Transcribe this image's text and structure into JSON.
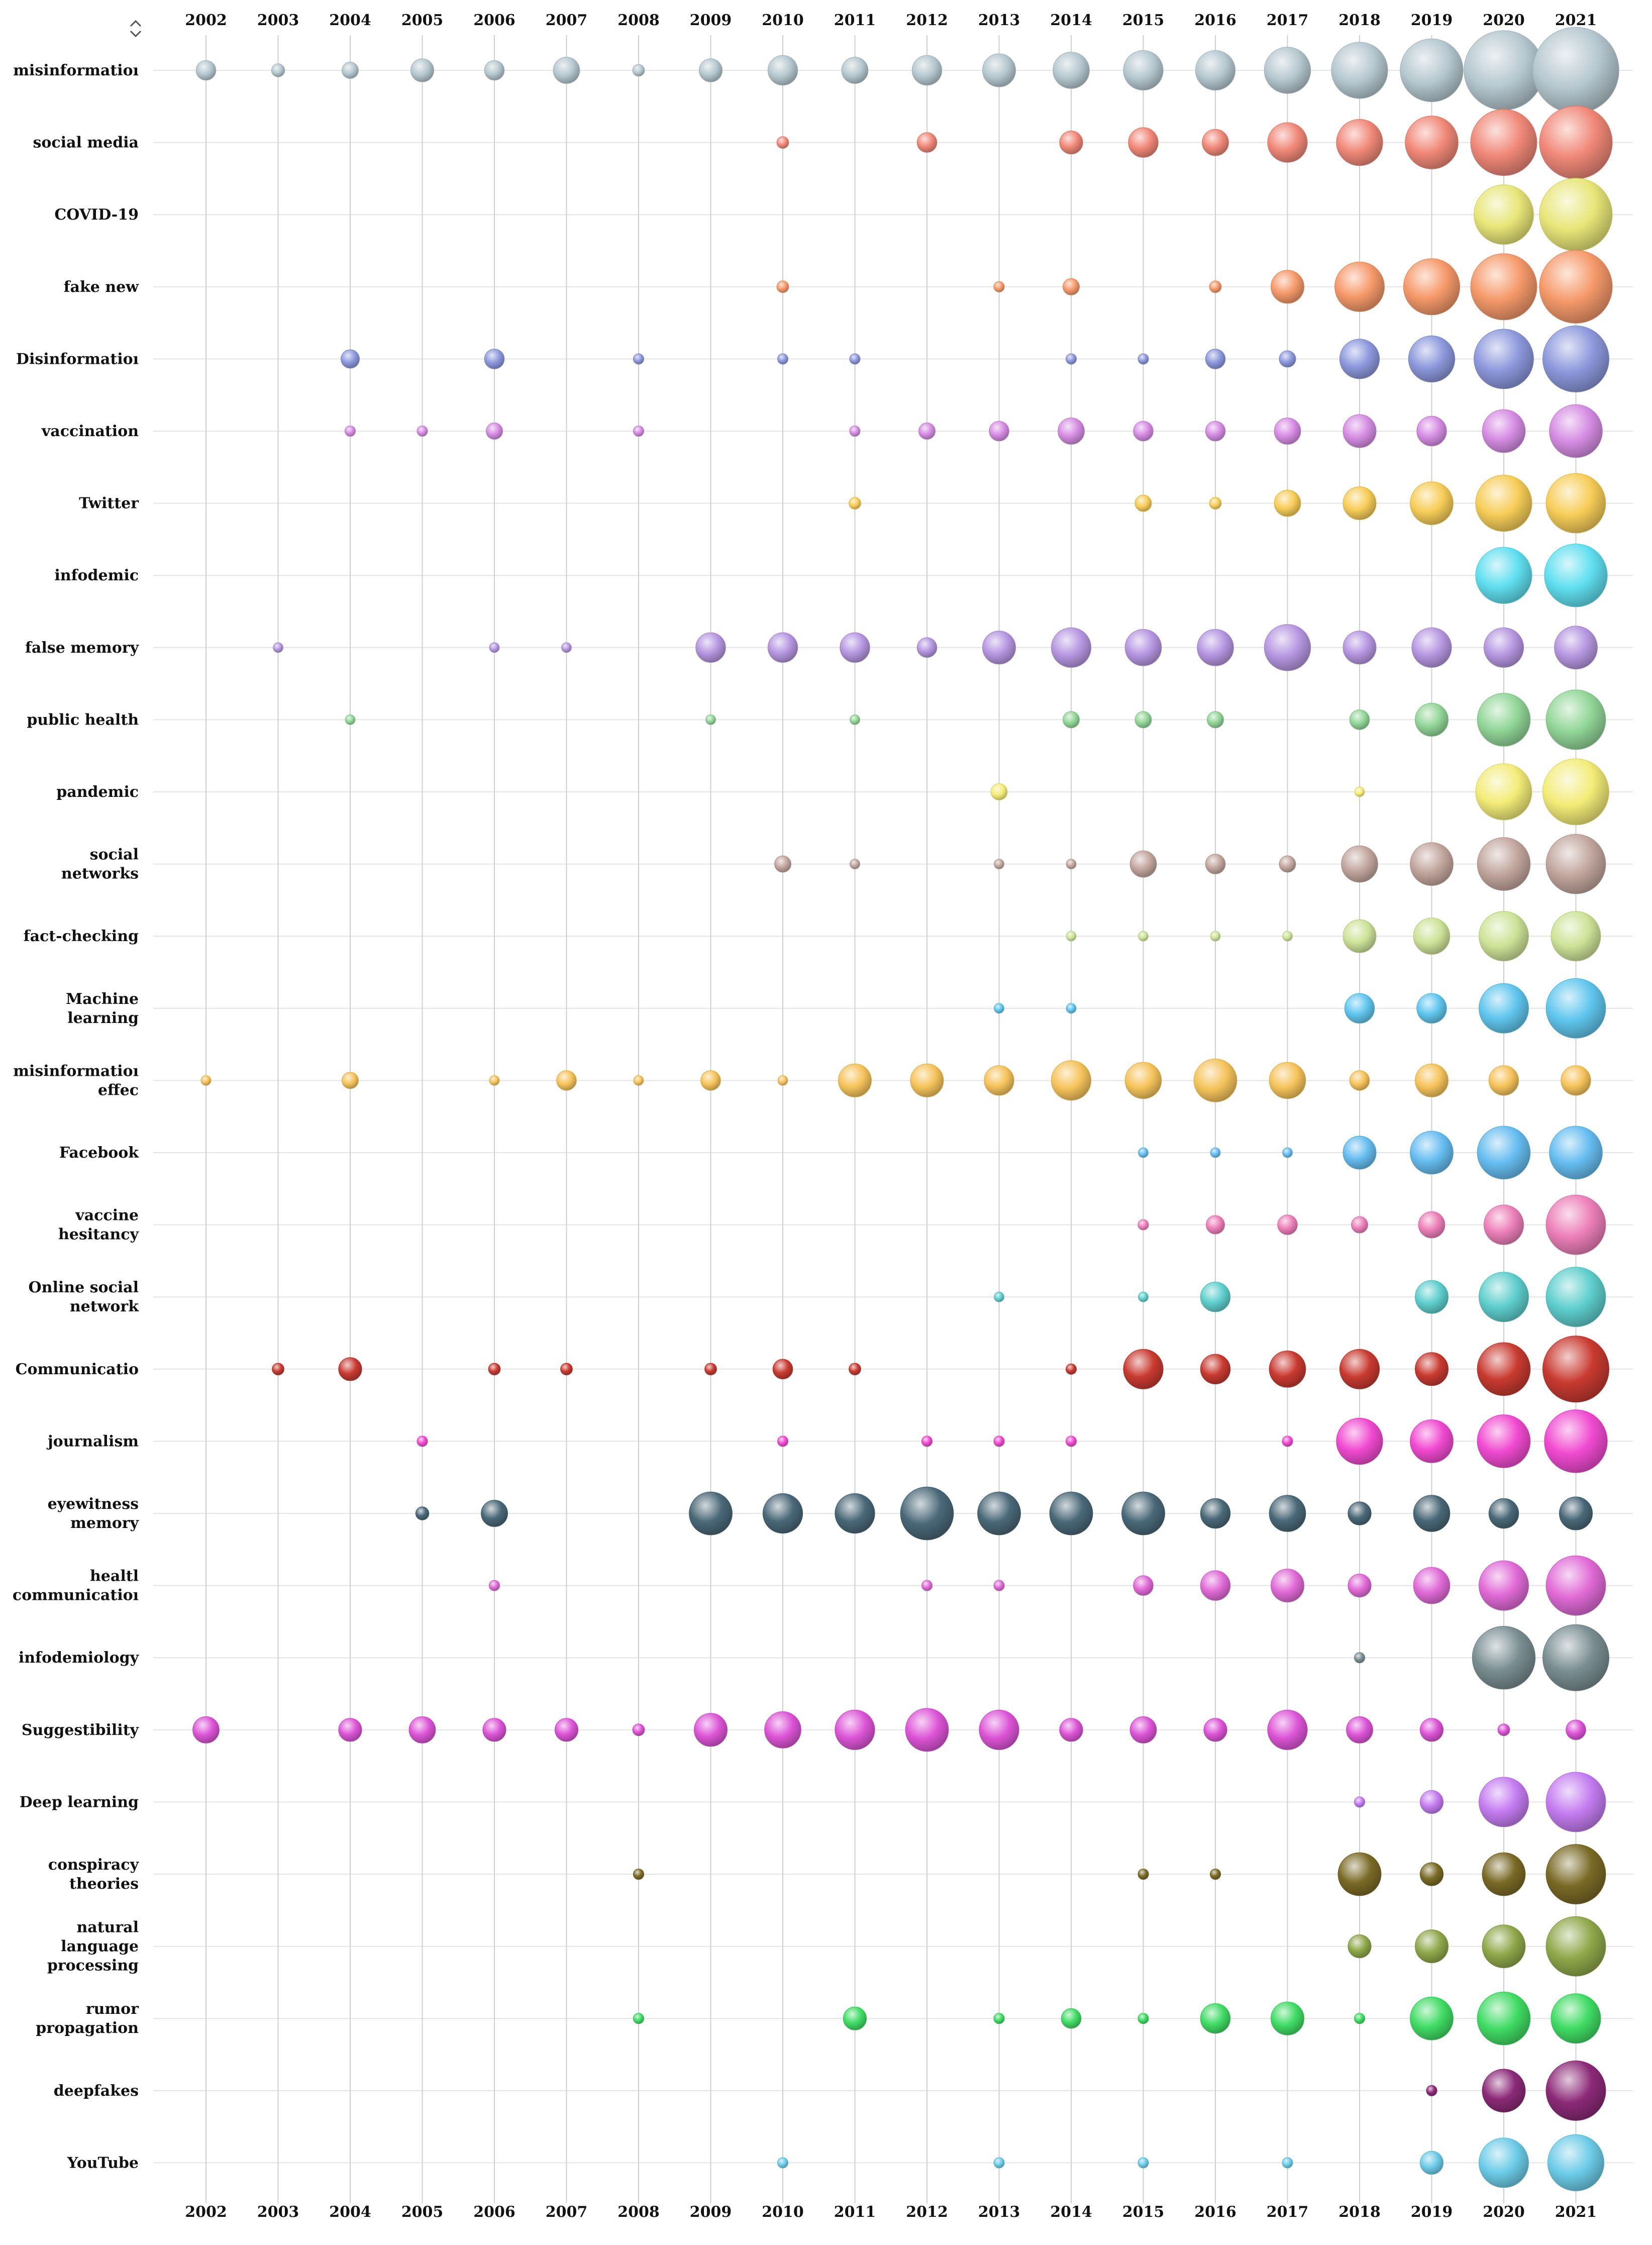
{
  "chart_data": {
    "type": "scatter",
    "title": "",
    "xlabel": "",
    "ylabel": "",
    "grid": true,
    "legend": "none",
    "x": [
      "2002",
      "2003",
      "2004",
      "2005",
      "2006",
      "2007",
      "2008",
      "2009",
      "2010",
      "2011",
      "2012",
      "2013",
      "2014",
      "2015",
      "2016",
      "2017",
      "2018",
      "2019",
      "2020",
      "2021"
    ],
    "keywords": [
      {
        "label": "misinformatioı",
        "color": "#b6c8d0",
        "sizes": [
          3,
          2,
          2.5,
          3.5,
          3,
          4,
          1.8,
          3.5,
          4.5,
          4,
          4.5,
          5,
          5.5,
          6,
          6,
          7,
          8.5,
          9.5,
          12,
          13
        ]
      },
      {
        "label": "social media",
        "color": "#f08878",
        "sizes": [
          0,
          0,
          0,
          0,
          0,
          0,
          0,
          0,
          1.8,
          0,
          3,
          0,
          3.5,
          4.5,
          4,
          6,
          7,
          8,
          10,
          11
        ]
      },
      {
        "label": "COVID-19",
        "color": "#e8e678",
        "sizes": [
          0,
          0,
          0,
          0,
          0,
          0,
          0,
          0,
          0,
          0,
          0,
          0,
          0,
          0,
          0,
          0,
          0,
          0,
          9,
          11
        ]
      },
      {
        "label": "fake new",
        "color": "#f5996a",
        "sizes": [
          0,
          0,
          0,
          0,
          0,
          0,
          0,
          0,
          1.8,
          0,
          0,
          1.6,
          2.5,
          0,
          1.8,
          5,
          7.5,
          8.5,
          10,
          11
        ]
      },
      {
        "label": "Disinformatioı",
        "color": "#8c98dc",
        "sizes": [
          0,
          0,
          2.8,
          0,
          3,
          0,
          1.6,
          0,
          1.6,
          1.6,
          0,
          0,
          1.6,
          1.6,
          3,
          2.5,
          6,
          7,
          9,
          10
        ]
      },
      {
        "label": "vaccination",
        "color": "#d58ce2",
        "sizes": [
          0,
          0,
          1.6,
          1.6,
          2.5,
          0,
          1.6,
          0,
          0,
          1.6,
          2.5,
          3,
          4,
          3,
          3,
          4,
          5,
          4.5,
          6.5,
          8
        ]
      },
      {
        "label": "Twitter",
        "color": "#f7cd58",
        "sizes": [
          0,
          0,
          0,
          0,
          0,
          0,
          0,
          0,
          0,
          1.8,
          0,
          0,
          0,
          2.5,
          1.8,
          4,
          5,
          6.5,
          8.5,
          9
        ]
      },
      {
        "label": "infodemic",
        "color": "#60dff0",
        "sizes": [
          0,
          0,
          0,
          0,
          0,
          0,
          0,
          0,
          0,
          0,
          0,
          0,
          0,
          0,
          0,
          0,
          0,
          0,
          8.5,
          9.5
        ]
      },
      {
        "label": "false memory",
        "color": "#b596e0",
        "sizes": [
          0,
          1.5,
          0,
          0,
          1.5,
          1.5,
          0,
          4.5,
          4.5,
          4.5,
          3,
          5,
          6,
          5.5,
          5.5,
          7,
          5,
          6,
          6,
          6.5
        ]
      },
      {
        "label": "public health",
        "color": "#92d698",
        "sizes": [
          0,
          0,
          1.5,
          0,
          0,
          0,
          0,
          1.5,
          0,
          1.5,
          0,
          0,
          2.5,
          2.5,
          2.5,
          0,
          3,
          5,
          8,
          9
        ]
      },
      {
        "label": "pandemic",
        "color": "#f3ec78",
        "sizes": [
          0,
          0,
          0,
          0,
          0,
          0,
          0,
          0,
          0,
          0,
          0,
          2.5,
          0,
          0,
          0,
          0,
          1.5,
          0,
          8.5,
          10
        ]
      },
      {
        "label": "social\nnetworks",
        "color": "#c2a69e",
        "sizes": [
          0,
          0,
          0,
          0,
          0,
          0,
          0,
          0,
          2.5,
          1.5,
          0,
          1.5,
          1.5,
          4,
          3,
          2.5,
          5.5,
          6.5,
          8,
          9
        ]
      },
      {
        "label": "fact-checking",
        "color": "#cde397",
        "sizes": [
          0,
          0,
          0,
          0,
          0,
          0,
          0,
          0,
          0,
          0,
          0,
          0,
          1.5,
          1.5,
          1.5,
          1.5,
          5,
          5.5,
          7.5,
          7.5
        ]
      },
      {
        "label": "Machine\nlearning",
        "color": "#60c6ee",
        "sizes": [
          0,
          0,
          0,
          0,
          0,
          0,
          0,
          0,
          0,
          0,
          0,
          1.5,
          1.5,
          0,
          0,
          0,
          4.5,
          4.5,
          7.5,
          9
        ]
      },
      {
        "label": "misinformatioı\neffec",
        "color": "#f5c35a",
        "sizes": [
          1.5,
          0,
          2.5,
          0,
          1.5,
          3,
          1.5,
          3,
          1.5,
          5,
          5,
          4.5,
          6,
          5.5,
          6.5,
          5.5,
          3,
          5,
          4.5,
          4.5
        ]
      },
      {
        "label": "Facebook",
        "color": "#66bdf0",
        "sizes": [
          0,
          0,
          0,
          0,
          0,
          0,
          0,
          0,
          0,
          0,
          0,
          0,
          0,
          1.5,
          1.5,
          1.5,
          5,
          6.5,
          8,
          8
        ]
      },
      {
        "label": "vaccine\nhesitancy",
        "color": "#ec7fb8",
        "sizes": [
          0,
          0,
          0,
          0,
          0,
          0,
          0,
          0,
          0,
          0,
          0,
          0,
          0,
          1.6,
          2.8,
          3,
          2.5,
          4,
          6,
          9
        ]
      },
      {
        "label": "Online social\nnetwork",
        "color": "#5ecfcd",
        "sizes": [
          0,
          0,
          0,
          0,
          0,
          0,
          0,
          0,
          0,
          0,
          0,
          1.5,
          0,
          1.5,
          4.5,
          0,
          0,
          5,
          7.5,
          9
        ]
      },
      {
        "label": "Communicatio",
        "color": "#c83a30",
        "sizes": [
          0,
          1.8,
          3.5,
          0,
          1.8,
          1.8,
          0,
          1.8,
          3,
          1.8,
          0,
          0,
          1.6,
          6,
          4.5,
          5.5,
          6,
          5,
          8,
          10
        ]
      },
      {
        "label": "journalism",
        "color": "#f04ad0",
        "sizes": [
          0,
          0,
          0,
          1.6,
          0,
          0,
          0,
          0,
          1.6,
          0,
          1.6,
          1.6,
          1.6,
          0,
          0,
          1.6,
          7,
          6.5,
          8,
          9.5
        ]
      },
      {
        "label": "eyewitness\nmemory",
        "color": "#4a6878",
        "sizes": [
          0,
          0,
          0,
          2,
          4,
          0,
          0,
          6.5,
          6,
          6,
          8,
          6.5,
          6.5,
          6.5,
          4.5,
          5.5,
          3.5,
          5.5,
          4.5,
          5
        ]
      },
      {
        "label": "healtl\ncommunicatioı",
        "color": "#e06ad6",
        "sizes": [
          0,
          0,
          0,
          0,
          1.6,
          0,
          0,
          0,
          0,
          0,
          1.6,
          1.6,
          0,
          3,
          4.5,
          5,
          3.5,
          5.5,
          7.5,
          9
        ]
      },
      {
        "label": "infodemiology",
        "color": "#7a8e92",
        "sizes": [
          0,
          0,
          0,
          0,
          0,
          0,
          0,
          0,
          0,
          0,
          0,
          0,
          0,
          0,
          0,
          0,
          1.6,
          0,
          9.5,
          10
        ]
      },
      {
        "label": "Suggestibility",
        "color": "#dc54d6",
        "sizes": [
          4,
          0,
          3.5,
          4,
          3.5,
          3.5,
          1.8,
          5,
          5.5,
          6,
          6.5,
          6,
          3.5,
          4,
          3.5,
          6,
          4,
          3.5,
          1.8,
          3
        ]
      },
      {
        "label": "Deep learning",
        "color": "#c47cf0",
        "sizes": [
          0,
          0,
          0,
          0,
          0,
          0,
          0,
          0,
          0,
          0,
          0,
          0,
          0,
          0,
          0,
          0,
          1.6,
          3.5,
          7.5,
          9
        ]
      },
      {
        "label": "conspiracy\ntheories",
        "color": "#7a6a26",
        "sizes": [
          0,
          0,
          0,
          0,
          0,
          0,
          1.6,
          0,
          0,
          0,
          0,
          0,
          0,
          1.6,
          1.6,
          0,
          6.5,
          3.5,
          6.5,
          9
        ]
      },
      {
        "label": "natural\nlanguage\nprocessing",
        "color": "#8fa84a",
        "sizes": [
          0,
          0,
          0,
          0,
          0,
          0,
          0,
          0,
          0,
          0,
          0,
          0,
          0,
          0,
          0,
          0,
          3.5,
          5,
          6.5,
          9
        ]
      },
      {
        "label": "rumor\npropagation",
        "color": "#40dc64",
        "sizes": [
          0,
          0,
          0,
          0,
          0,
          0,
          1.6,
          0,
          0,
          3.5,
          0,
          1.6,
          3,
          1.6,
          4.5,
          5,
          1.6,
          6.5,
          8,
          7.5
        ]
      },
      {
        "label": "deepfakes",
        "color": "#8c2a78",
        "sizes": [
          0,
          0,
          0,
          0,
          0,
          0,
          0,
          0,
          0,
          0,
          0,
          0,
          0,
          0,
          0,
          0,
          0,
          1.6,
          6.5,
          9
        ]
      },
      {
        "label": "YouTube",
        "color": "#6ccce8",
        "sizes": [
          0,
          0,
          0,
          0,
          0,
          0,
          0,
          0,
          1.6,
          0,
          0,
          1.6,
          0,
          1.6,
          0,
          1.6,
          0,
          3.5,
          7.5,
          8.5
        ]
      }
    ]
  },
  "icons": {
    "sort": "sort-updown-icon"
  },
  "colors": {
    "grid": "#e4e4e4",
    "year_line": "#cfcfcf",
    "text": "#111111"
  }
}
